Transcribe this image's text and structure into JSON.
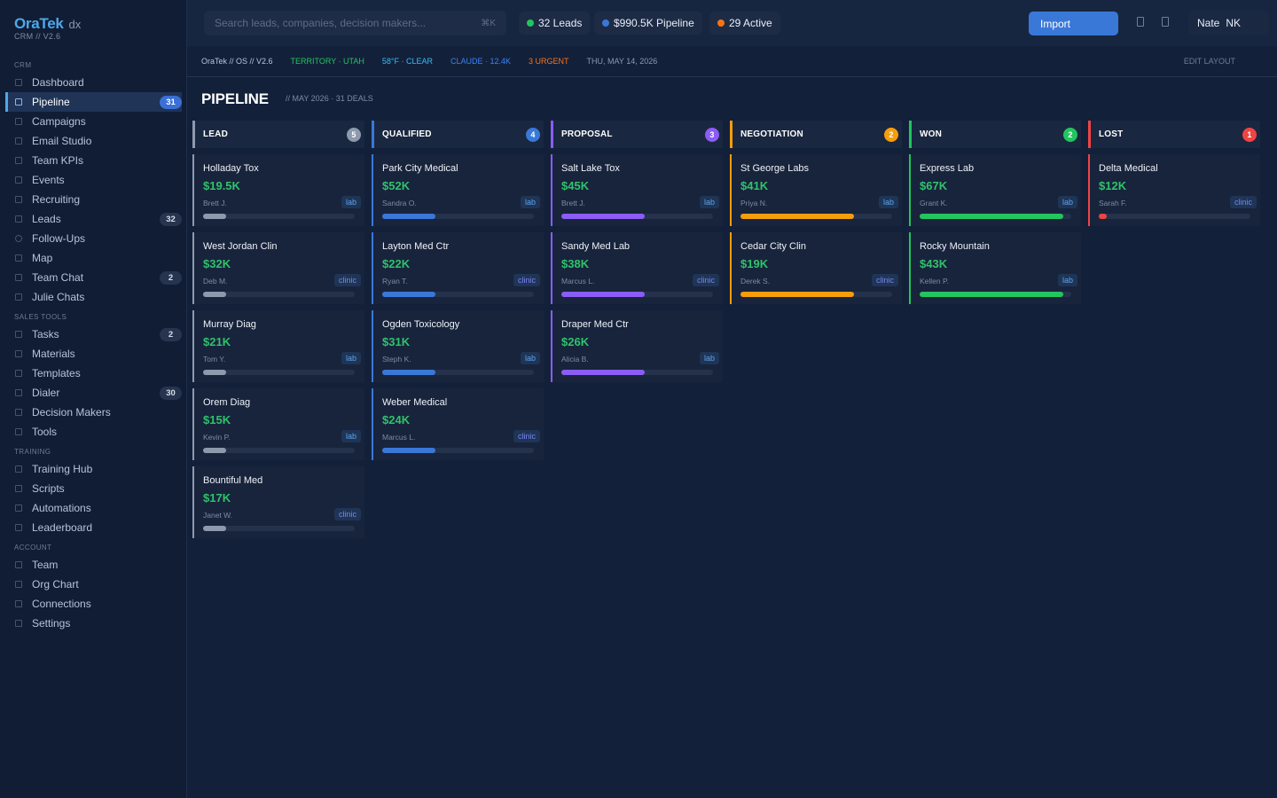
{
  "brand": {
    "name": "OraTek",
    "suffix": "dx",
    "version": "CRM // V2.6"
  },
  "nav": {
    "sections": [
      "CRM",
      "SALES TOOLS",
      "TRAINING",
      "ACCOUNT"
    ],
    "items": [
      {
        "label": "Dashboard",
        "badge": ""
      },
      {
        "label": "Pipeline",
        "badge": "31",
        "active": true
      },
      {
        "label": "Campaigns",
        "badge": ""
      },
      {
        "label": "Email Studio",
        "badge": ""
      },
      {
        "label": "Team KPIs",
        "badge": ""
      },
      {
        "label": "Events",
        "badge": ""
      },
      {
        "label": "Recruiting",
        "badge": ""
      },
      {
        "label": "Leads",
        "badge": "32"
      },
      {
        "label": "Follow-Ups",
        "badge": ""
      },
      {
        "label": "Map",
        "badge": ""
      },
      {
        "label": "Team Chat",
        "badge": "2"
      },
      {
        "label": "Julie Chats",
        "badge": ""
      },
      {
        "label": "Tasks",
        "badge": "2"
      },
      {
        "label": "Materials",
        "badge": ""
      },
      {
        "label": "Templates",
        "badge": ""
      },
      {
        "label": "Dialer",
        "badge": "30"
      },
      {
        "label": "Decision Makers",
        "badge": ""
      },
      {
        "label": "Tools",
        "badge": ""
      },
      {
        "label": "Training Hub",
        "badge": ""
      },
      {
        "label": "Scripts",
        "badge": ""
      },
      {
        "label": "Automations",
        "badge": ""
      },
      {
        "label": "Leaderboard",
        "badge": ""
      },
      {
        "label": "Team",
        "badge": ""
      },
      {
        "label": "Org Chart",
        "badge": ""
      },
      {
        "label": "Connections",
        "badge": ""
      },
      {
        "label": "Settings",
        "badge": ""
      }
    ]
  },
  "topbar": {
    "search_placeholder": "Search leads, companies, decision makers...",
    "search_shortcut": "⌘K",
    "leads_pill": "32 Leads",
    "pipeline_pill": "$990.5K Pipeline",
    "active_pill": "29 Active",
    "import_label": "Import",
    "user_name": "Nate",
    "user_initials": "NK"
  },
  "statusbar": {
    "product": "OraTek // OS // V2.6",
    "territory": "TERRITORY · UTAH",
    "weather": "58°F · CLEAR",
    "claude": "CLAUDE · 12.4K",
    "urgent": "3 URGENT",
    "date": "THU, MAY 14, 2026",
    "edit_layout": "EDIT LAYOUT"
  },
  "page": {
    "title": "PIPELINE",
    "subtitle": "// MAY 2026 · 31 DEALS"
  },
  "colors": {
    "lead": "#8d99ad",
    "qualified": "#3a78d8",
    "proposal": "#8b5cf6",
    "negotiation": "#f59e0b",
    "won": "#22c55e",
    "lost": "#ef4444",
    "money": "#2fc36b"
  },
  "columns": [
    {
      "name": "LEAD",
      "count": "5",
      "color": "#8d99ad",
      "progress": 0.15,
      "cards": [
        {
          "name": "Holladay Tox",
          "value": "$19.5K",
          "owner": "Brett J.",
          "tag": "lab"
        },
        {
          "name": "West Jordan Clin",
          "value": "$32K",
          "owner": "Deb M.",
          "tag": "clinic"
        },
        {
          "name": "Murray Diag",
          "value": "$21K",
          "owner": "Tom Y.",
          "tag": "lab"
        },
        {
          "name": "Orem Diag",
          "value": "$15K",
          "owner": "Kevin P.",
          "tag": "lab"
        },
        {
          "name": "Bountiful Med",
          "value": "$17K",
          "owner": "Janet W.",
          "tag": "clinic"
        }
      ]
    },
    {
      "name": "QUALIFIED",
      "count": "4",
      "color": "#3a78d8",
      "progress": 0.35,
      "cards": [
        {
          "name": "Park City Medical",
          "value": "$52K",
          "owner": "Sandra O.",
          "tag": "lab"
        },
        {
          "name": "Layton Med Ctr",
          "value": "$22K",
          "owner": "Ryan T.",
          "tag": "clinic"
        },
        {
          "name": "Ogden Toxicology",
          "value": "$31K",
          "owner": "Steph K.",
          "tag": "lab"
        },
        {
          "name": "Weber Medical",
          "value": "$24K",
          "owner": "Marcus L.",
          "tag": "clinic"
        }
      ]
    },
    {
      "name": "PROPOSAL",
      "count": "3",
      "color": "#8b5cf6",
      "progress": 0.55,
      "cards": [
        {
          "name": "Salt Lake Tox",
          "value": "$45K",
          "owner": "Brett J.",
          "tag": "lab"
        },
        {
          "name": "Sandy Med Lab",
          "value": "$38K",
          "owner": "Marcus L.",
          "tag": "clinic"
        },
        {
          "name": "Draper Med Ctr",
          "value": "$26K",
          "owner": "Alicia B.",
          "tag": "lab"
        }
      ]
    },
    {
      "name": "NEGOTIATION",
      "count": "2",
      "color": "#f59e0b",
      "progress": 0.75,
      "cards": [
        {
          "name": "St George Labs",
          "value": "$41K",
          "owner": "Priya N.",
          "tag": "lab"
        },
        {
          "name": "Cedar City Clin",
          "value": "$19K",
          "owner": "Derek S.",
          "tag": "clinic"
        }
      ]
    },
    {
      "name": "WON",
      "count": "2",
      "color": "#22c55e",
      "progress": 0.95,
      "cards": [
        {
          "name": "Express Lab",
          "value": "$67K",
          "owner": "Grant K.",
          "tag": "lab"
        },
        {
          "name": "Rocky Mountain",
          "value": "$43K",
          "owner": "Kellen P.",
          "tag": "lab"
        }
      ]
    },
    {
      "name": "LOST",
      "count": "1",
      "color": "#ef4444",
      "progress": 0.05,
      "cards": [
        {
          "name": "Delta Medical",
          "value": "$12K",
          "owner": "Sarah F.",
          "tag": "clinic"
        }
      ]
    }
  ]
}
